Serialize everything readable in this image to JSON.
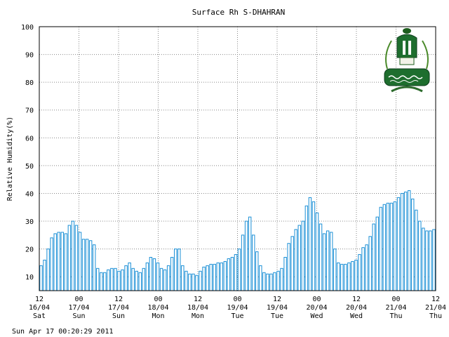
{
  "chart_data": {
    "type": "bar",
    "title": "Surface Rh S-DHAHRAN",
    "ylabel": "Relative Humidity(%)",
    "xlabel": "",
    "ylim": [
      5,
      100
    ],
    "yticks": [
      10,
      20,
      30,
      40,
      50,
      60,
      70,
      80,
      90,
      100
    ],
    "grid": true,
    "bar_color": "#1a8fd6",
    "x_tick_labels": [
      {
        "hour": "12",
        "date": "16/04",
        "day": "Sat"
      },
      {
        "hour": "00",
        "date": "17/04",
        "day": "Sun"
      },
      {
        "hour": "12",
        "date": "17/04",
        "day": "Sun"
      },
      {
        "hour": "00",
        "date": "18/04",
        "day": "Mon"
      },
      {
        "hour": "12",
        "date": "18/04",
        "day": "Mon"
      },
      {
        "hour": "00",
        "date": "19/04",
        "day": "Tue"
      },
      {
        "hour": "12",
        "date": "19/04",
        "day": "Tue"
      },
      {
        "hour": "00",
        "date": "20/04",
        "day": "Wed"
      },
      {
        "hour": "12",
        "date": "20/04",
        "day": "Wed"
      },
      {
        "hour": "00",
        "date": "21/04",
        "day": "Thu"
      },
      {
        "hour": "12",
        "date": "21/04",
        "day": "Thu"
      }
    ],
    "values": [
      14,
      16,
      20,
      24,
      25.5,
      26,
      26,
      25.5,
      28.5,
      30,
      28.5,
      26,
      23.5,
      23.5,
      23,
      21.5,
      13,
      11.5,
      11.5,
      12.5,
      13,
      13,
      12,
      12.5,
      14,
      15,
      13,
      12,
      11.5,
      13,
      15,
      17,
      16.5,
      15,
      13,
      12.5,
      14,
      17,
      20,
      20,
      14,
      12,
      11,
      11,
      10.5,
      12,
      13.5,
      14,
      14.5,
      14.5,
      15,
      15,
      15.5,
      16.5,
      17,
      18,
      20,
      25,
      30,
      31.5,
      25,
      19,
      14,
      11.5,
      11,
      11,
      11.5,
      12,
      13,
      17,
      22,
      24.5,
      27,
      28.5,
      30,
      35.5,
      38.5,
      37,
      33,
      29,
      25.5,
      26.5,
      26,
      20,
      15,
      14.5,
      14.5,
      15,
      15.5,
      16,
      18,
      20.5,
      21.5,
      24.5,
      29,
      31.5,
      35,
      36,
      36.5,
      36.5,
      37,
      38.5,
      40,
      40.5,
      41,
      38,
      34,
      30,
      27.5,
      26.5,
      26.5,
      27
    ]
  },
  "footer": "Sun Apr 17 00:20:29 2011"
}
